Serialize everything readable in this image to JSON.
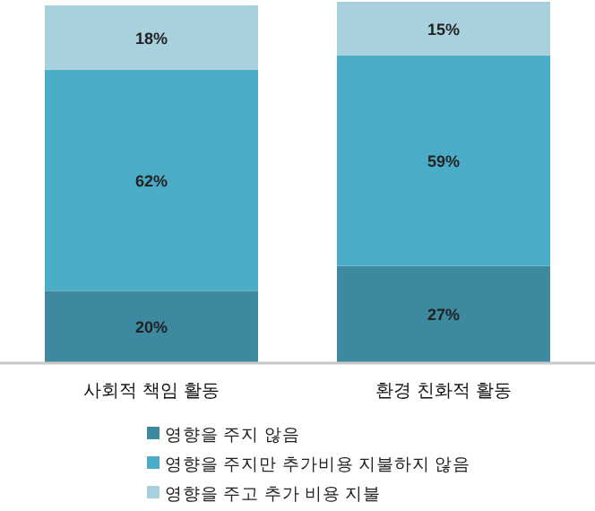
{
  "chart_data": {
    "type": "bar",
    "stacked": true,
    "legend": "bottom",
    "categories": [
      "사회적 책임 활동",
      "환경 친화적 활동"
    ],
    "series": [
      {
        "name": "영향을 주지 않음",
        "color": "#3d8aa0",
        "values": [
          20,
          27
        ],
        "value_labels": [
          "20%",
          "27%"
        ]
      },
      {
        "name": "영향을 주지만 추가비용 지불하지 않음",
        "color": "#4aacc6",
        "values": [
          62,
          59
        ],
        "value_labels": [
          "62%",
          "59%"
        ]
      },
      {
        "name": "영향을 주고 추가 비용 지불",
        "color": "#a9d0dd",
        "values": [
          18,
          15
        ],
        "value_labels": [
          "18%",
          "15%"
        ]
      }
    ]
  }
}
